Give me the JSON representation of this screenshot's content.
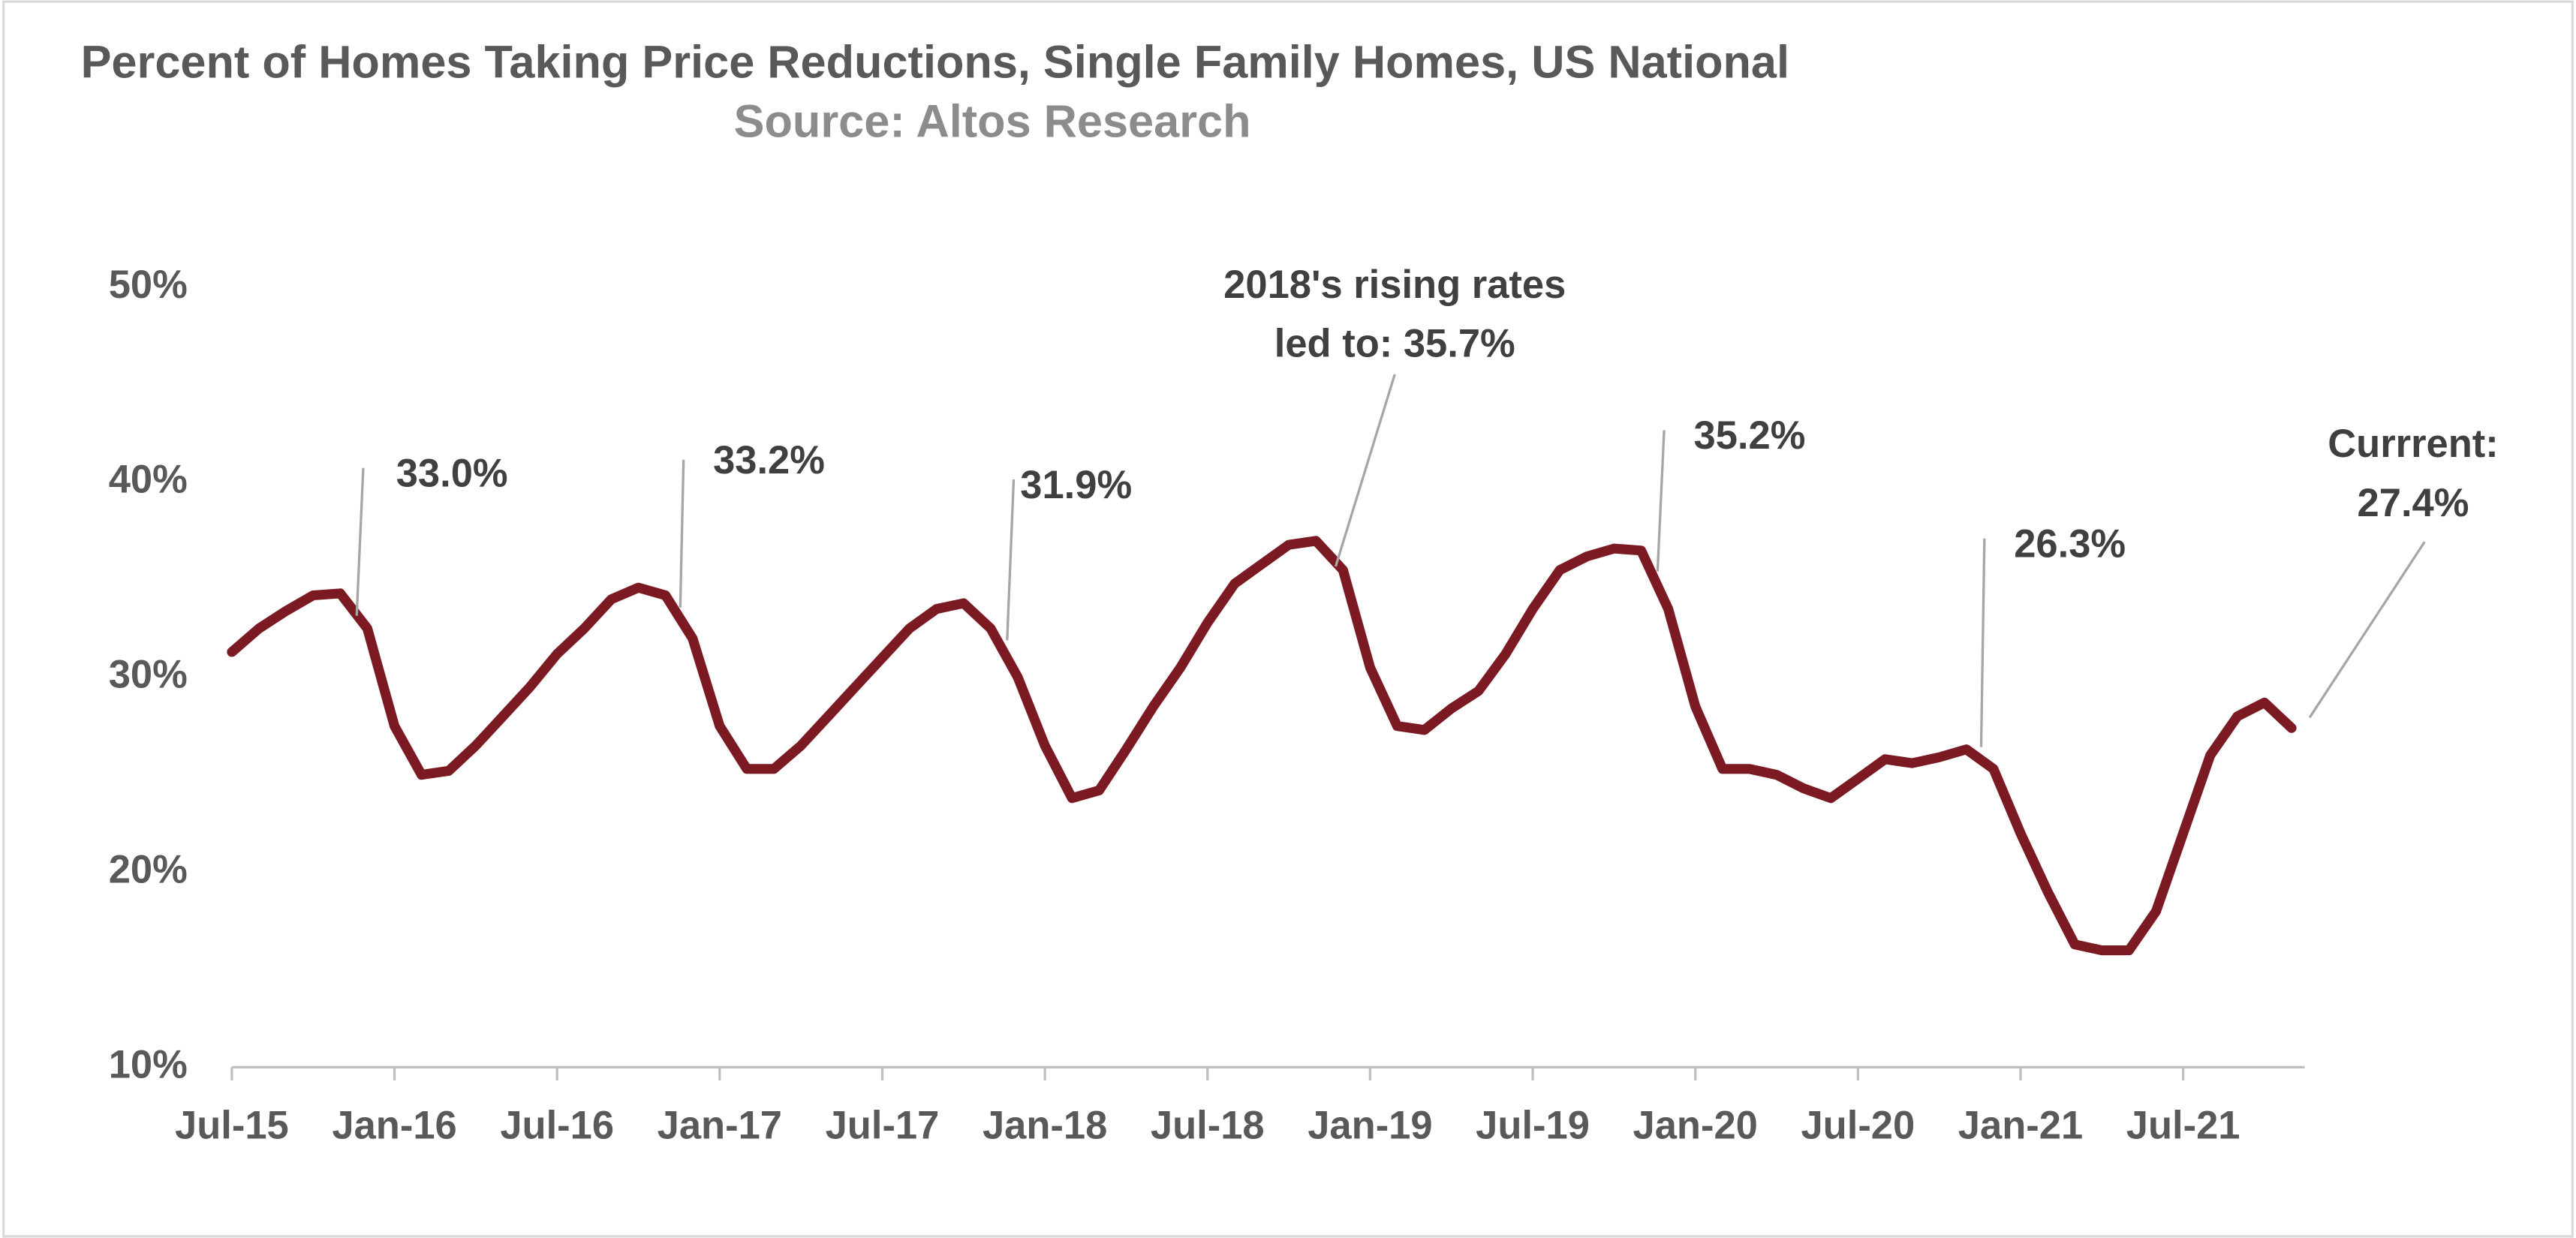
{
  "chart_data": {
    "type": "line",
    "title": "Percent of Homes Taking Price Reductions, Single Family Homes, US National",
    "subtitle": "Source: Altos Research",
    "categories": [
      "Jul-15",
      null,
      null,
      null,
      null,
      null,
      "Jan-16",
      null,
      null,
      null,
      null,
      null,
      "Jul-16",
      null,
      null,
      null,
      null,
      null,
      "Jan-17",
      null,
      null,
      null,
      null,
      null,
      "Jul-17",
      null,
      null,
      null,
      null,
      null,
      "Jan-18",
      null,
      null,
      null,
      null,
      null,
      "Jul-18",
      null,
      null,
      null,
      null,
      null,
      "Jan-19",
      null,
      null,
      null,
      null,
      null,
      "Jul-19",
      null,
      null,
      null,
      null,
      null,
      "Jan-20",
      null,
      null,
      null,
      null,
      null,
      "Jul-20",
      null,
      null,
      null,
      null,
      null,
      "Jan-21",
      null,
      null,
      null,
      null,
      null,
      "Jul-21",
      null,
      null,
      null,
      null
    ],
    "series": [
      {
        "name": "Percent of Homes Taking Price Reductions",
        "color": "#7b1a22",
        "values": [
          31.3,
          32.5,
          33.4,
          34.2,
          34.3,
          32.5,
          27.5,
          25.0,
          25.2,
          26.5,
          28.0,
          29.5,
          31.2,
          32.5,
          34.0,
          34.6,
          34.2,
          32.0,
          27.5,
          25.3,
          25.3,
          26.5,
          28.0,
          29.5,
          31.0,
          32.5,
          33.5,
          33.8,
          32.5,
          30.0,
          26.5,
          23.8,
          24.2,
          26.3,
          28.5,
          30.5,
          32.8,
          34.8,
          35.8,
          36.8,
          37.0,
          35.5,
          30.5,
          27.5,
          27.3,
          28.4,
          29.3,
          31.2,
          33.5,
          35.5,
          36.2,
          36.6,
          36.5,
          33.5,
          28.5,
          25.3,
          25.3,
          25.0,
          24.3,
          23.8,
          24.8,
          25.8,
          25.6,
          25.9,
          26.3,
          25.3,
          22.0,
          19.0,
          16.3,
          16.0,
          16.0,
          18.0,
          22.0,
          26.0,
          28.0,
          28.7,
          27.4
        ]
      }
    ],
    "ylim": [
      10,
      50
    ],
    "yticks": [
      {
        "value": 10,
        "label": "10%"
      },
      {
        "value": 20,
        "label": "20%"
      },
      {
        "value": 30,
        "label": "30%"
      },
      {
        "value": 40,
        "label": "40%"
      },
      {
        "value": 50,
        "label": "50%"
      }
    ],
    "grid": false,
    "annotations": [
      [
        "33.0%"
      ],
      [
        "33.2%"
      ],
      [
        "31.9%"
      ],
      [
        "2018's rising rates",
        "led to: 35.7%"
      ],
      [
        "35.2%"
      ],
      [
        "26.3%"
      ],
      [
        "Currrent:",
        "27.4%"
      ]
    ]
  }
}
